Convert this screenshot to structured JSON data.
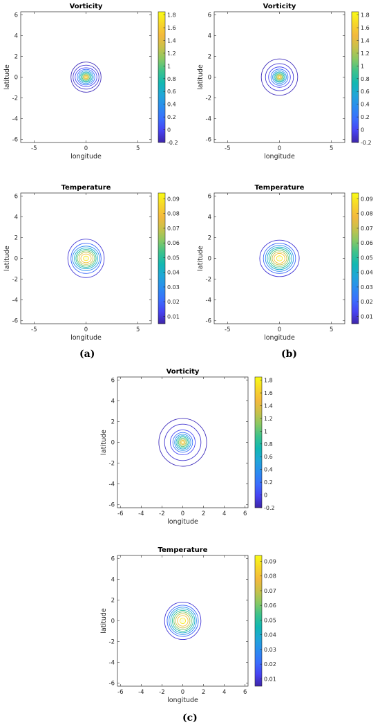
{
  "colors": {
    "colormap": [
      "#3e26a8",
      "#4743f2",
      "#3a6efd",
      "#2b8cef",
      "#20a6d8",
      "#12b8b2",
      "#3cc28c",
      "#88c864",
      "#c8c14a",
      "#f3b93d",
      "#f7d72a",
      "#f9fb15"
    ],
    "axis": "#262626",
    "contour_outer": "#4b3bd6"
  },
  "panel_labels": {
    "a": "(a)",
    "b": "(b)",
    "c": "(c)"
  },
  "chart_data": [
    {
      "id": "a-vorticity",
      "type": "contour",
      "panel": "a",
      "title": "Vorticity",
      "xlabel": "longitude",
      "ylabel": "latitude",
      "xlim": [
        -6.283,
        6.283
      ],
      "ylim": [
        -6.283,
        6.283
      ],
      "xticks": [
        -5,
        0,
        5
      ],
      "yticks": [
        -6,
        -4,
        -2,
        0,
        2,
        4,
        6
      ],
      "colorbar": {
        "min": -0.2,
        "max": 1.85,
        "ticks": [
          -0.2,
          0,
          0.2,
          0.4,
          0.6,
          0.8,
          1,
          1.2,
          1.4,
          1.6,
          1.8
        ]
      },
      "contours": [
        {
          "level": -0.15,
          "rx": 1.45,
          "ry": 1.45
        },
        {
          "level": -0.1,
          "rx": 1.25,
          "ry": 1.15
        },
        {
          "level": 0.0,
          "rx": 1.05,
          "ry": 0.9
        },
        {
          "level": 0.2,
          "rx": 0.85,
          "ry": 0.75
        },
        {
          "level": 0.4,
          "rx": 0.7,
          "ry": 0.62
        },
        {
          "level": 0.6,
          "rx": 0.58,
          "ry": 0.5
        },
        {
          "level": 0.8,
          "rx": 0.47,
          "ry": 0.41
        },
        {
          "level": 1.0,
          "rx": 0.37,
          "ry": 0.32
        },
        {
          "level": 1.2,
          "rx": 0.28,
          "ry": 0.24
        },
        {
          "level": 1.4,
          "rx": 0.19,
          "ry": 0.17
        },
        {
          "level": 1.6,
          "rx": 0.11,
          "ry": 0.1
        }
      ]
    },
    {
      "id": "b-vorticity",
      "type": "contour",
      "panel": "b",
      "title": "Vorticity",
      "xlabel": "longitude",
      "ylabel": "latitude",
      "xlim": [
        -6.283,
        6.283
      ],
      "ylim": [
        -6.283,
        6.283
      ],
      "xticks": [
        -5,
        0,
        5
      ],
      "yticks": [
        -6,
        -4,
        -2,
        0,
        2,
        4,
        6
      ],
      "colorbar": {
        "min": -0.2,
        "max": 1.85,
        "ticks": [
          -0.2,
          0,
          0.2,
          0.4,
          0.6,
          0.8,
          1,
          1.2,
          1.4,
          1.6,
          1.8
        ]
      },
      "contours": [
        {
          "level": -0.15,
          "rx": 1.75,
          "ry": 1.75
        },
        {
          "level": -0.1,
          "rx": 1.35,
          "ry": 1.3
        },
        {
          "level": 0.0,
          "rx": 1.05,
          "ry": 0.98
        },
        {
          "level": 0.2,
          "rx": 0.82,
          "ry": 0.78
        },
        {
          "level": 0.4,
          "rx": 0.66,
          "ry": 0.62
        },
        {
          "level": 0.6,
          "rx": 0.54,
          "ry": 0.5
        },
        {
          "level": 0.8,
          "rx": 0.44,
          "ry": 0.41
        },
        {
          "level": 1.0,
          "rx": 0.34,
          "ry": 0.32
        },
        {
          "level": 1.2,
          "rx": 0.26,
          "ry": 0.24
        },
        {
          "level": 1.4,
          "rx": 0.18,
          "ry": 0.17
        },
        {
          "level": 1.6,
          "rx": 0.1,
          "ry": 0.1
        }
      ]
    },
    {
      "id": "a-temperature",
      "type": "contour",
      "panel": "a",
      "title": "Temperature",
      "xlabel": "longitude",
      "ylabel": "latitude",
      "xlim": [
        -6.283,
        6.283
      ],
      "ylim": [
        -6.283,
        6.283
      ],
      "xticks": [
        -5,
        0,
        5
      ],
      "yticks": [
        -6,
        -4,
        -2,
        0,
        2,
        4,
        6
      ],
      "colorbar": {
        "min": 0.005,
        "max": 0.094,
        "ticks": [
          0.01,
          0.02,
          0.03,
          0.04,
          0.05,
          0.06,
          0.07,
          0.08,
          0.09
        ]
      },
      "contours": [
        {
          "level": 0.01,
          "rx": 1.75,
          "ry": 1.85
        },
        {
          "level": 0.02,
          "rx": 1.45,
          "ry": 1.45
        },
        {
          "level": 0.03,
          "rx": 1.3,
          "ry": 1.18
        },
        {
          "level": 0.04,
          "rx": 1.12,
          "ry": 1.0
        },
        {
          "level": 0.05,
          "rx": 0.97,
          "ry": 0.86
        },
        {
          "level": 0.06,
          "rx": 0.83,
          "ry": 0.72
        },
        {
          "level": 0.07,
          "rx": 0.68,
          "ry": 0.58
        },
        {
          "level": 0.08,
          "rx": 0.5,
          "ry": 0.42
        },
        {
          "level": 0.09,
          "rx": 0.26,
          "ry": 0.22
        }
      ]
    },
    {
      "id": "b-temperature",
      "type": "contour",
      "panel": "b",
      "title": "Temperature",
      "xlabel": "longitude",
      "ylabel": "latitude",
      "xlim": [
        -6.283,
        6.283
      ],
      "ylim": [
        -6.283,
        6.283
      ],
      "xticks": [
        -5,
        0,
        5
      ],
      "yticks": [
        -6,
        -4,
        -2,
        0,
        2,
        4,
        6
      ],
      "colorbar": {
        "min": 0.005,
        "max": 0.094,
        "ticks": [
          0.01,
          0.02,
          0.03,
          0.04,
          0.05,
          0.06,
          0.07,
          0.08,
          0.09
        ]
      },
      "contours": [
        {
          "level": 0.01,
          "rx": 1.9,
          "ry": 1.75
        },
        {
          "level": 0.02,
          "rx": 1.55,
          "ry": 1.45
        },
        {
          "level": 0.03,
          "rx": 1.35,
          "ry": 1.25
        },
        {
          "level": 0.04,
          "rx": 1.18,
          "ry": 1.08
        },
        {
          "level": 0.05,
          "rx": 1.02,
          "ry": 0.93
        },
        {
          "level": 0.06,
          "rx": 0.86,
          "ry": 0.78
        },
        {
          "level": 0.07,
          "rx": 0.7,
          "ry": 0.63
        },
        {
          "level": 0.08,
          "rx": 0.52,
          "ry": 0.47
        },
        {
          "level": 0.09,
          "rx": 0.28,
          "ry": 0.25
        }
      ]
    },
    {
      "id": "c-vorticity",
      "type": "contour",
      "panel": "c",
      "title": "Vorticity",
      "xlabel": "longitude",
      "ylabel": "latitude",
      "xlim": [
        -6.283,
        6.283
      ],
      "ylim": [
        -6.283,
        6.283
      ],
      "xticks": [
        -6,
        -4,
        -2,
        0,
        2,
        4,
        6
      ],
      "yticks": [
        -6,
        -4,
        -2,
        0,
        2,
        4,
        6
      ],
      "colorbar": {
        "min": -0.2,
        "max": 1.85,
        "ticks": [
          -0.2,
          0,
          0.2,
          0.4,
          0.6,
          0.8,
          1,
          1.2,
          1.4,
          1.6,
          1.8
        ]
      },
      "contours": [
        {
          "level": -0.15,
          "rx": 2.3,
          "ry": 2.3
        },
        {
          "level": -0.1,
          "rx": 1.75,
          "ry": 1.75
        },
        {
          "level": 0.0,
          "rx": 1.2,
          "ry": 1.2
        },
        {
          "level": 0.2,
          "rx": 0.95,
          "ry": 0.95
        },
        {
          "level": 0.4,
          "rx": 0.78,
          "ry": 0.78
        },
        {
          "level": 0.6,
          "rx": 0.64,
          "ry": 0.64
        },
        {
          "level": 0.8,
          "rx": 0.52,
          "ry": 0.52
        },
        {
          "level": 1.0,
          "rx": 0.41,
          "ry": 0.41
        },
        {
          "level": 1.2,
          "rx": 0.31,
          "ry": 0.31
        },
        {
          "level": 1.4,
          "rx": 0.21,
          "ry": 0.21
        },
        {
          "level": 1.6,
          "rx": 0.12,
          "ry": 0.12
        }
      ]
    },
    {
      "id": "c-temperature",
      "type": "contour",
      "panel": "c",
      "title": "Temperature",
      "xlabel": "longitude",
      "ylabel": "latitude",
      "xlim": [
        -6.283,
        6.283
      ],
      "ylim": [
        -6.283,
        6.283
      ],
      "xticks": [
        -6,
        -4,
        -2,
        0,
        2,
        4,
        6
      ],
      "yticks": [
        -6,
        -4,
        -2,
        0,
        2,
        4,
        6
      ],
      "colorbar": {
        "min": 0.005,
        "max": 0.094,
        "ticks": [
          0.01,
          0.02,
          0.03,
          0.04,
          0.05,
          0.06,
          0.07,
          0.08,
          0.09
        ]
      },
      "contours": [
        {
          "level": 0.01,
          "rx": 1.75,
          "ry": 1.8
        },
        {
          "level": 0.02,
          "rx": 1.5,
          "ry": 1.5
        },
        {
          "level": 0.03,
          "rx": 1.32,
          "ry": 1.32
        },
        {
          "level": 0.04,
          "rx": 1.16,
          "ry": 1.16
        },
        {
          "level": 0.05,
          "rx": 1.0,
          "ry": 1.0
        },
        {
          "level": 0.06,
          "rx": 0.85,
          "ry": 0.85
        },
        {
          "level": 0.07,
          "rx": 0.69,
          "ry": 0.69
        },
        {
          "level": 0.08,
          "rx": 0.51,
          "ry": 0.51
        },
        {
          "level": 0.09,
          "rx": 0.27,
          "ry": 0.27
        }
      ]
    }
  ]
}
